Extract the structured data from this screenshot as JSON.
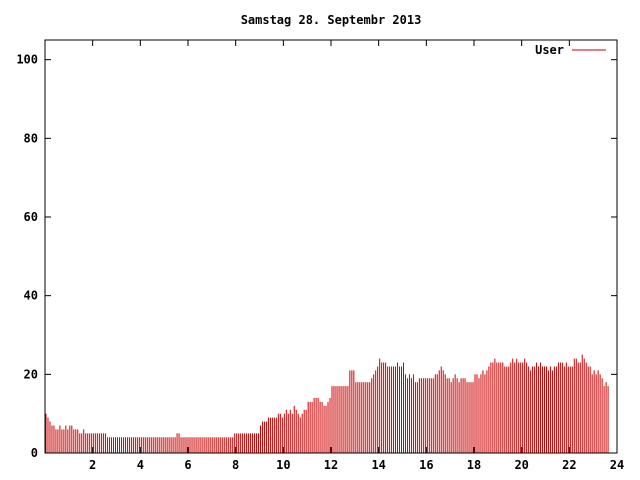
{
  "chart_data": {
    "type": "bar",
    "title": "Samstag 28. Septembr 2013",
    "xlabel": "",
    "ylabel": "",
    "xlim": [
      0,
      24
    ],
    "ylim": [
      0,
      105
    ],
    "x_ticks": [
      2,
      4,
      6,
      8,
      10,
      12,
      14,
      16,
      18,
      20,
      22,
      24
    ],
    "y_ticks": [
      0,
      20,
      40,
      60,
      80,
      100
    ],
    "grid": false,
    "legend_position": "top-right",
    "series": [
      {
        "name": "User",
        "color": "#cc0000",
        "interval_minutes": 5,
        "values": [
          10,
          9,
          8,
          7,
          7,
          6,
          6,
          7,
          6,
          6,
          7,
          6,
          7,
          7,
          6,
          6,
          6,
          5,
          5,
          6,
          5,
          5,
          5,
          5,
          5,
          5,
          5,
          5,
          5,
          5,
          5,
          4,
          4,
          4,
          4,
          4,
          4,
          4,
          4,
          4,
          4,
          4,
          4,
          4,
          4,
          4,
          4,
          4,
          4,
          4,
          4,
          4,
          4,
          4,
          4,
          4,
          4,
          4,
          4,
          4,
          4,
          4,
          4,
          4,
          4,
          4,
          5,
          5,
          4,
          4,
          4,
          4,
          4,
          4,
          4,
          4,
          4,
          4,
          4,
          4,
          4,
          4,
          4,
          4,
          4,
          4,
          4,
          4,
          4,
          4,
          4,
          4,
          4,
          4,
          4,
          5,
          5,
          5,
          5,
          5,
          5,
          5,
          5,
          5,
          5,
          5,
          5,
          5,
          7,
          8,
          8,
          8,
          9,
          9,
          9,
          9,
          9,
          10,
          10,
          9,
          10,
          11,
          10,
          11,
          10,
          12,
          11,
          10,
          9,
          10,
          11,
          11,
          13,
          13,
          13,
          14,
          14,
          14,
          13,
          13,
          12,
          12,
          13,
          14,
          17,
          17,
          17,
          17,
          17,
          17,
          17,
          17,
          17,
          21,
          21,
          21,
          18,
          18,
          18,
          18,
          18,
          18,
          18,
          18,
          19,
          20,
          21,
          22,
          24,
          23,
          23,
          23,
          22,
          22,
          22,
          22,
          22,
          23,
          22,
          22,
          23,
          20,
          19,
          20,
          19,
          20,
          18,
          18,
          19,
          19,
          19,
          19,
          19,
          19,
          19,
          19,
          20,
          20,
          21,
          22,
          21,
          20,
          19,
          19,
          18,
          19,
          20,
          19,
          18,
          19,
          19,
          19,
          18,
          18,
          18,
          18,
          20,
          20,
          19,
          20,
          21,
          20,
          21,
          22,
          23,
          23,
          24,
          23,
          23,
          23,
          23,
          22,
          22,
          22,
          23,
          24,
          23,
          24,
          23,
          23,
          23,
          24,
          23,
          22,
          21,
          22,
          22,
          23,
          22,
          23,
          22,
          22,
          22,
          21,
          22,
          21,
          22,
          22,
          23,
          23,
          23,
          22,
          23,
          22,
          22,
          22,
          24,
          24,
          23,
          23,
          25,
          24,
          23,
          22,
          22,
          20,
          21,
          20,
          21,
          20,
          19,
          17,
          18,
          17
        ]
      }
    ]
  }
}
